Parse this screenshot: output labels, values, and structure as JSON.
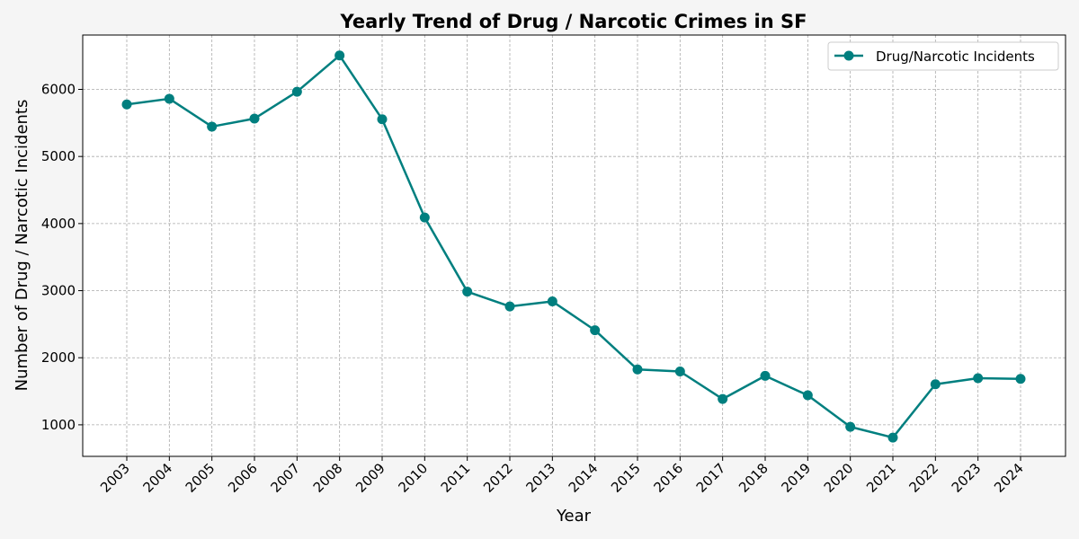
{
  "chart_data": {
    "type": "line",
    "title": "Yearly Trend of Drug / Narcotic Crimes in SF",
    "xlabel": "Year",
    "ylabel": "Number of Drug / Narcotic Incidents",
    "x": [
      "2003",
      "2004",
      "2005",
      "2006",
      "2007",
      "2008",
      "2009",
      "2010",
      "2011",
      "2012",
      "2013",
      "2014",
      "2015",
      "2016",
      "2017",
      "2018",
      "2019",
      "2020",
      "2021",
      "2022",
      "2023",
      "2024"
    ],
    "series": [
      {
        "name": "Drug/Narcotic Incidents",
        "values": [
          5775,
          5860,
          5445,
          5565,
          5965,
          6505,
          5555,
          4090,
          2985,
          2765,
          2840,
          2410,
          1825,
          1795,
          1385,
          1730,
          1440,
          970,
          810,
          1605,
          1695,
          1685
        ],
        "color": "#007f7f",
        "marker": "circle"
      }
    ],
    "ylim": [
      530,
      6810
    ],
    "yticks": [
      1000,
      2000,
      3000,
      4000,
      5000,
      6000
    ],
    "grid": true,
    "legend_position": "top-right",
    "background_color": "#f5f5f5",
    "plot_background_color": "#ffffff"
  }
}
